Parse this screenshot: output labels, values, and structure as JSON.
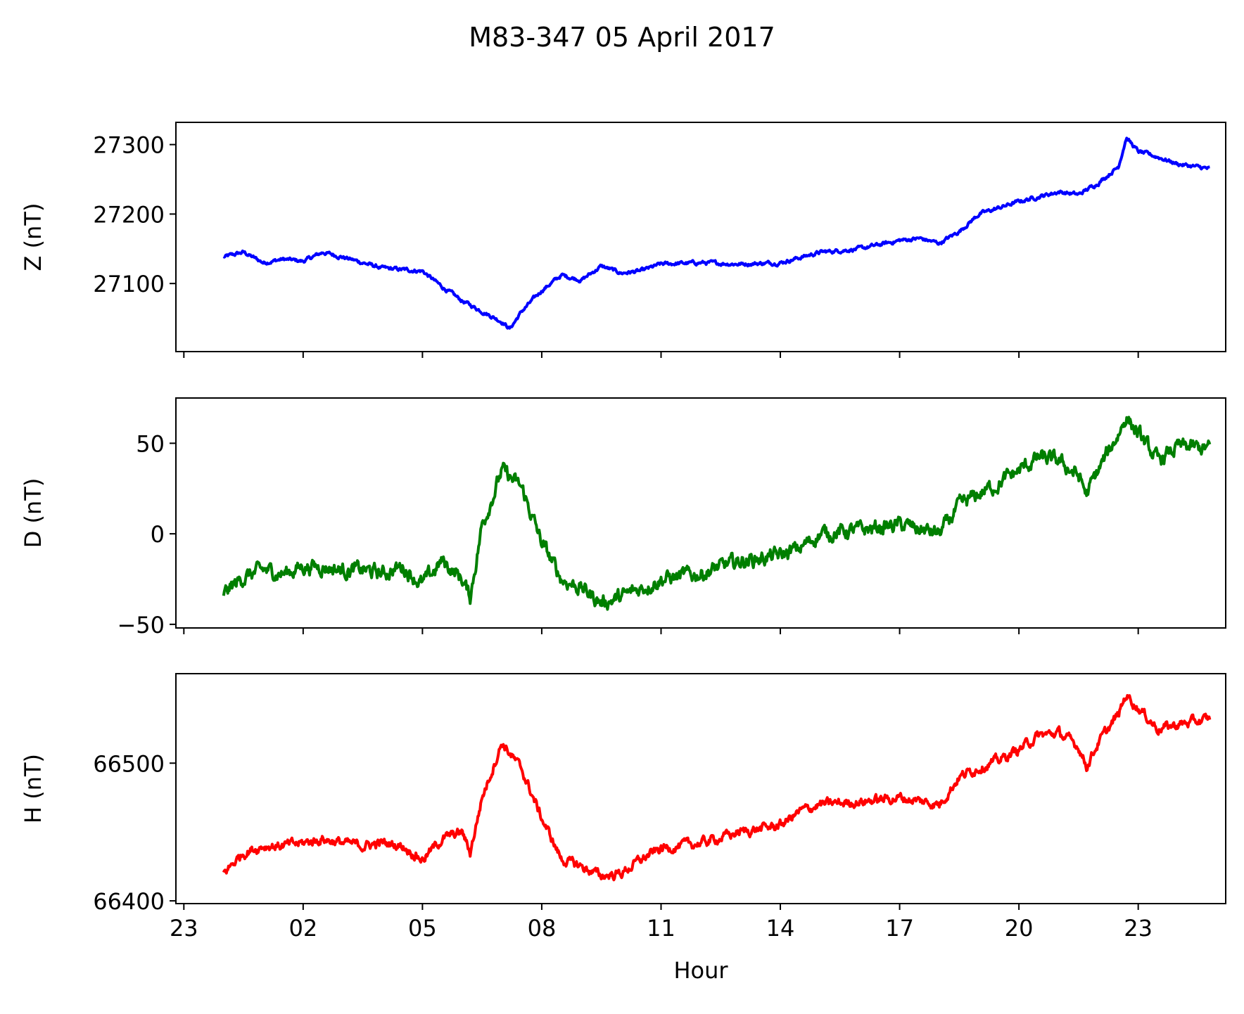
{
  "figure": {
    "title": "M83-347 05 April 2017"
  },
  "chart_data": [
    {
      "type": "line",
      "ylabel": "Z (nT)",
      "xlabel": "",
      "color": "#0000ff",
      "x_tick_labels": [
        "23",
        "02",
        "05",
        "08",
        "11",
        "14",
        "17",
        "20",
        "23"
      ],
      "x_tick_hours": [
        -1,
        2,
        5,
        8,
        11,
        14,
        17,
        20,
        23
      ],
      "xlim": [
        -1.2,
        25.2
      ],
      "ylim": [
        27002,
        27332
      ],
      "yticks": [
        27100,
        27200,
        27300
      ],
      "show_x_tick_labels": false,
      "series": [
        {
          "x": [
            0,
            0.5,
            1.0,
            1.5,
            2.0,
            2.5,
            3.0,
            3.5,
            4.0,
            4.5,
            5.0,
            5.5,
            6.0,
            6.5,
            7.0,
            7.2,
            7.5,
            8.0,
            8.5,
            9.0,
            9.5,
            10.0,
            10.5,
            11.0,
            12.0,
            13.0,
            14.0,
            15.0,
            16.0,
            17.0,
            17.5,
            18.0,
            18.5,
            19.0,
            20.0,
            20.5,
            21.0,
            21.5,
            22.0,
            22.5,
            22.7,
            23.0,
            23.5,
            24.0,
            24.8
          ],
          "y": [
            27138,
            27145,
            27130,
            27135,
            27132,
            27145,
            27138,
            27130,
            27122,
            27120,
            27118,
            27095,
            27075,
            27060,
            27045,
            27035,
            27060,
            27090,
            27112,
            27105,
            27125,
            27115,
            27118,
            27128,
            27130,
            27128,
            27130,
            27145,
            27150,
            27162,
            27165,
            27158,
            27175,
            27200,
            27218,
            27225,
            27232,
            27228,
            27245,
            27268,
            27310,
            27290,
            27282,
            27272,
            27265
          ],
          "noise": 4
        }
      ]
    },
    {
      "type": "line",
      "ylabel": "D (nT)",
      "xlabel": "",
      "color": "#007f00",
      "x_tick_labels": [
        "23",
        "02",
        "05",
        "08",
        "11",
        "14",
        "17",
        "20",
        "23"
      ],
      "x_tick_hours": [
        -1,
        2,
        5,
        8,
        11,
        14,
        17,
        20,
        23
      ],
      "xlim": [
        -1.2,
        25.2
      ],
      "ylim": [
        -52,
        75
      ],
      "yticks": [
        -50,
        0,
        50
      ],
      "show_x_tick_labels": false,
      "series": [
        {
          "x": [
            0,
            0.5,
            1.0,
            1.5,
            2.0,
            2.5,
            3.0,
            3.5,
            4.0,
            4.5,
            5.0,
            5.5,
            6.0,
            6.2,
            6.5,
            7.0,
            7.5,
            8.0,
            8.5,
            9.0,
            9.5,
            10.0,
            10.5,
            11.0,
            12.0,
            13.0,
            14.0,
            14.5,
            15.0,
            16.0,
            17.0,
            18.0,
            18.5,
            19.0,
            19.5,
            20.0,
            20.5,
            21.0,
            21.5,
            21.7,
            22.0,
            22.5,
            22.7,
            23.0,
            23.5,
            24.0,
            24.8
          ],
          "y": [
            -33,
            -24,
            -20,
            -22,
            -18,
            -18,
            -20,
            -20,
            -22,
            -18,
            -28,
            -15,
            -25,
            -35,
            5,
            35,
            25,
            -5,
            -25,
            -30,
            -38,
            -35,
            -30,
            -25,
            -22,
            -15,
            -12,
            -8,
            0,
            2,
            5,
            0,
            15,
            22,
            28,
            35,
            42,
            40,
            32,
            22,
            35,
            55,
            65,
            55,
            40,
            48,
            47
          ],
          "noise": 6
        }
      ]
    },
    {
      "type": "line",
      "ylabel": "H (nT)",
      "xlabel": "Hour",
      "color": "#ff0000",
      "x_tick_labels": [
        "23",
        "02",
        "05",
        "08",
        "11",
        "14",
        "17",
        "20",
        "23"
      ],
      "x_tick_hours": [
        -1,
        2,
        5,
        8,
        11,
        14,
        17,
        20,
        23
      ],
      "xlim": [
        -1.2,
        25.2
      ],
      "ylim": [
        66398,
        66565
      ],
      "yticks": [
        66400,
        66500
      ],
      "show_x_tick_labels": true,
      "series": [
        {
          "x": [
            0,
            0.5,
            1.0,
            1.5,
            2.0,
            2.5,
            3.0,
            3.5,
            4.0,
            4.5,
            5.0,
            5.5,
            6.0,
            6.2,
            6.5,
            7.0,
            7.5,
            8.0,
            8.5,
            9.0,
            9.5,
            10.0,
            10.5,
            11.0,
            12.0,
            13.0,
            14.0,
            14.5,
            15.0,
            16.0,
            17.0,
            18.0,
            18.5,
            19.0,
            19.5,
            20.0,
            20.5,
            21.0,
            21.5,
            21.7,
            22.0,
            22.5,
            22.7,
            23.0,
            23.5,
            24.0,
            24.8
          ],
          "y": [
            66420,
            66435,
            66440,
            66440,
            66442,
            66445,
            66442,
            66440,
            66442,
            66440,
            66430,
            66445,
            66450,
            66435,
            66475,
            66515,
            66495,
            66460,
            66430,
            66425,
            66418,
            66420,
            66430,
            66438,
            66442,
            66450,
            66455,
            66465,
            66470,
            66472,
            66475,
            66470,
            66490,
            66497,
            66502,
            66510,
            66520,
            66522,
            66512,
            66498,
            66515,
            66535,
            66550,
            66540,
            66525,
            66528,
            66532
          ],
          "noise": 5
        }
      ]
    }
  ]
}
